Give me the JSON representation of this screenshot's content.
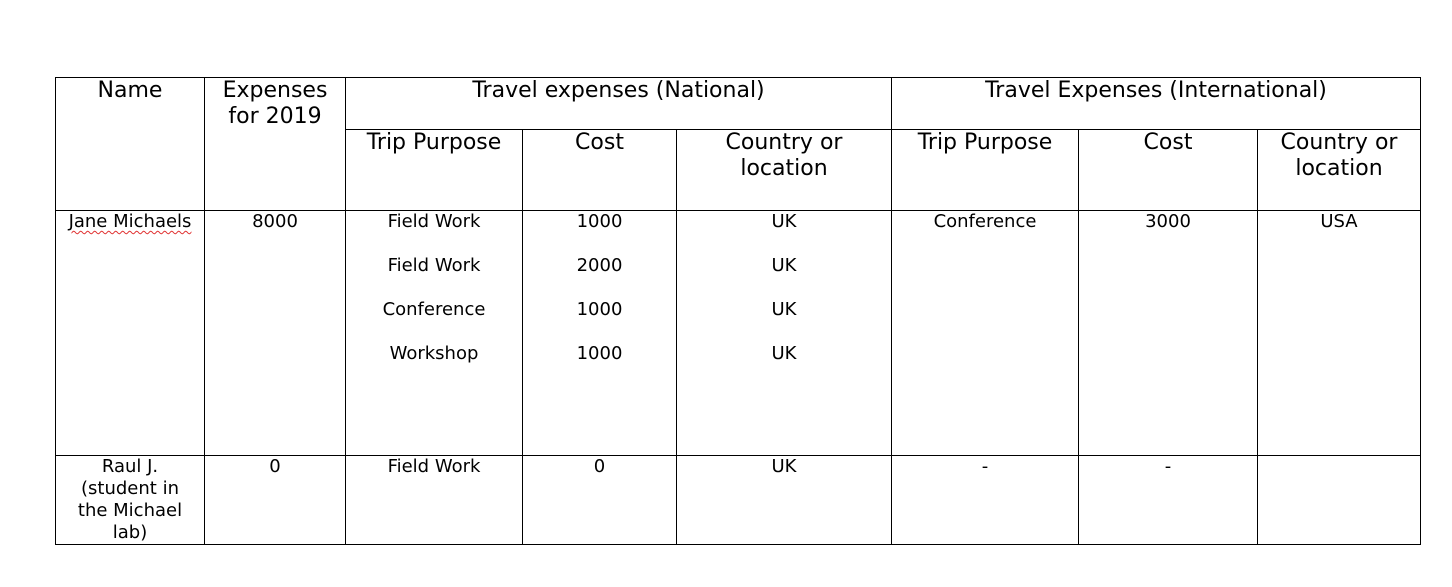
{
  "headers": {
    "name": "Name",
    "expenses": "Expenses for 2019",
    "national_group": "Travel expenses (National)",
    "international_group": "Travel Expenses (International)",
    "nat_trip_purpose": "Trip Purpose",
    "nat_cost": "Cost",
    "nat_country": "Country or location",
    "int_trip_purpose": "Trip Purpose",
    "int_cost": "Cost",
    "int_country": "Country or location"
  },
  "rows": [
    {
      "name": "Jane Michaels",
      "expenses": "8000",
      "national": [
        {
          "purpose": "Field Work",
          "cost": "1000",
          "country": "UK"
        },
        {
          "purpose": "Field Work",
          "cost": "2000",
          "country": "UK"
        },
        {
          "purpose": "Conference",
          "cost": "1000",
          "country": "UK"
        },
        {
          "purpose": "Workshop",
          "cost": "1000",
          "country": "UK"
        }
      ],
      "international": [
        {
          "purpose": "Conference",
          "cost": "3000",
          "country": "USA"
        }
      ]
    },
    {
      "name": "Raul J. (student in the Michael lab)",
      "expenses": "0",
      "national": [
        {
          "purpose": "Field Work",
          "cost": "0",
          "country": "UK"
        }
      ],
      "international": [
        {
          "purpose": "-",
          "cost": "-",
          "country": ""
        }
      ]
    }
  ]
}
